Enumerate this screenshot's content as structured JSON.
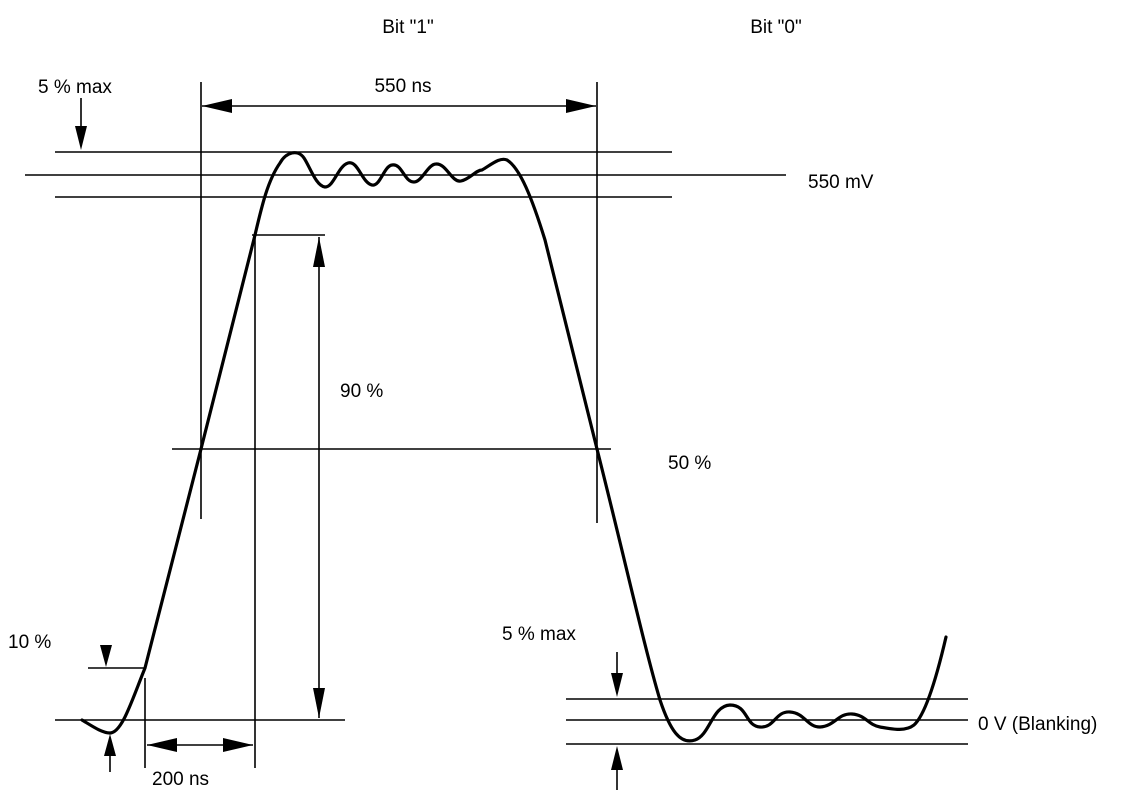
{
  "labels": {
    "bit_one": "Bit \"1\"",
    "bit_zero": "Bit \"0\"",
    "overshoot_top": "5 % max",
    "width_550ns": "550 ns",
    "level_550mv": "550 mV",
    "rise_90": "90 %",
    "half_level": "50 %",
    "low_10": "10 %",
    "overshoot_bottom": "5 % max",
    "blanking": "0 V (Blanking)",
    "rise_200ns": "200 ns"
  }
}
